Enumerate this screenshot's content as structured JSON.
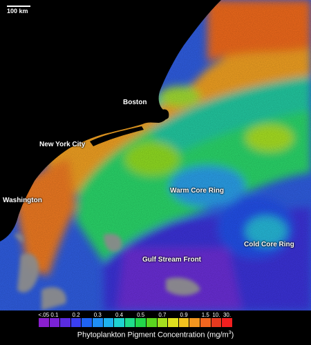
{
  "scale_label": "100 km",
  "places": {
    "boston": "Boston",
    "new_york": "New York City",
    "washington": "Washington",
    "warm_core_ring": "Warm Core Ring",
    "cold_core_ring": "Cold Core Ring",
    "gulf_stream_front": "Gulf Stream Front"
  },
  "legend": {
    "title": "Phytoplankton Pigment Concentration (mg/m",
    "title_sup": "3",
    "title_end": ")",
    "ticks": [
      "<.05",
      "0.1",
      "0.2",
      "0.3",
      "0.4",
      "0.5",
      "0.7",
      "0.9",
      "1.5",
      "10.",
      "30."
    ],
    "colors": [
      "#8a1fcf",
      "#7a22d6",
      "#5a2ce0",
      "#3a3ff0",
      "#1f64f5",
      "#1f8ff5",
      "#1fb3ee",
      "#1fd3d0",
      "#1fdc8a",
      "#22d64a",
      "#5ad61f",
      "#a4e01f",
      "#e0e01f",
      "#f2c21f",
      "#f2961f",
      "#f2661f",
      "#e83a1f",
      "#f21f1f"
    ],
    "tick_positions": [
      0,
      1,
      3,
      5,
      7,
      9,
      11,
      13,
      15,
      16,
      17
    ]
  }
}
